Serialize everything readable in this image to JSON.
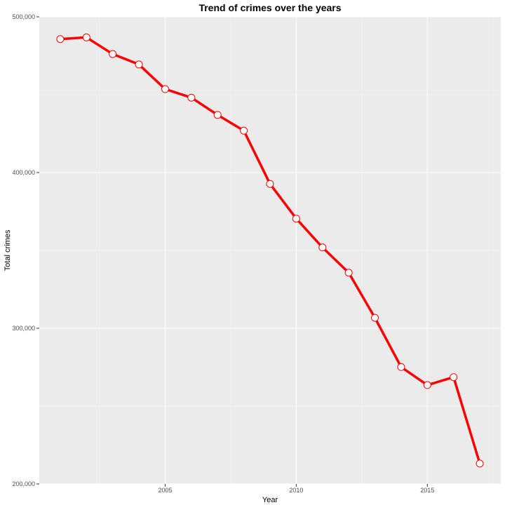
{
  "chart_data": {
    "type": "line",
    "title": "Trend of crimes over the years",
    "xlabel": "Year",
    "ylabel": "Total crimes",
    "x": [
      2001,
      2002,
      2003,
      2004,
      2005,
      2006,
      2007,
      2008,
      2009,
      2010,
      2011,
      2012,
      2013,
      2014,
      2015,
      2016,
      2017
    ],
    "series": [
      {
        "values": [
          485700,
          486800,
          476100,
          469400,
          453600,
          448100,
          437000,
          426900,
          392700,
          370400,
          351900,
          335700,
          306700,
          275100,
          263500,
          268600,
          213100
        ]
      }
    ],
    "xlim": [
      2000.2,
      2017.8
    ],
    "ylim": [
      200000,
      500000
    ],
    "x_ticks": [
      2005,
      2010,
      2015
    ],
    "x_tick_labels": [
      "2005",
      "2010",
      "2015"
    ],
    "y_ticks": [
      200000,
      300000,
      400000,
      500000
    ],
    "y_tick_labels": [
      "200,000",
      "300,000",
      "400,000",
      "500,000"
    ],
    "grid": true,
    "colors": {
      "line": "#ff0000",
      "marker_fill": "#ffffff",
      "marker_stroke": "#ff0000",
      "panel_background": "#ebebeb",
      "grid_major": "#ffffff",
      "grid_minor": "#f5f5f5"
    }
  }
}
